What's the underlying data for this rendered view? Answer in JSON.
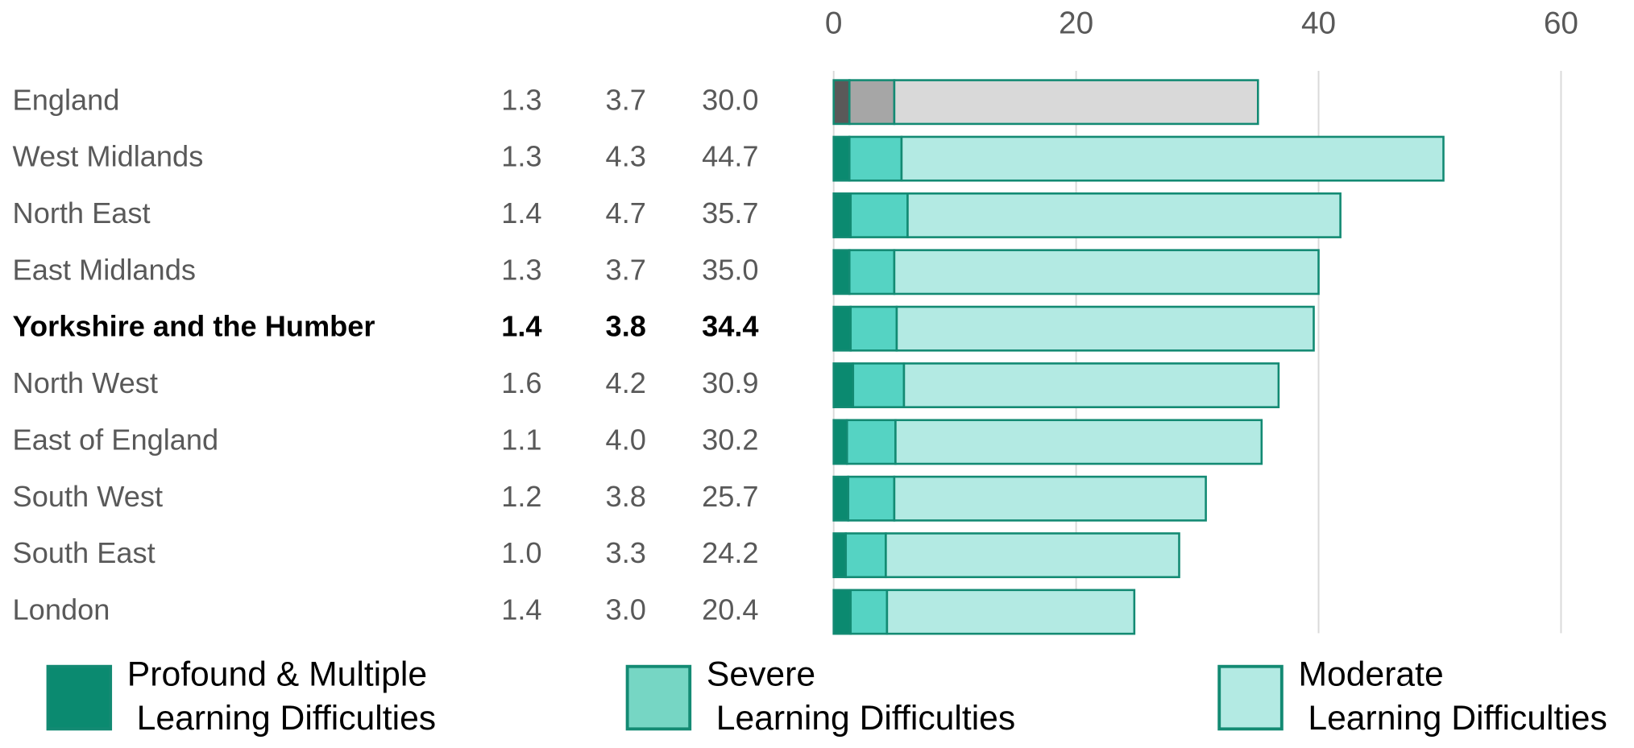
{
  "chart_data": {
    "type": "stacked_bar_horizontal",
    "categories": [
      "England",
      "West Midlands",
      "North East",
      "East Midlands",
      "Yorkshire and the Humber",
      "North West",
      "East of England",
      "South West",
      "South East",
      "London"
    ],
    "emphasis": [
      false,
      false,
      false,
      false,
      true,
      false,
      false,
      false,
      false,
      false
    ],
    "series": [
      {
        "name": "Profound & Multiple Learning Difficulties",
        "color": "#0b8a70",
        "colors": [
          "#595959",
          "#0b8a70",
          "#0b8a70",
          "#0b8a70",
          "#0b8a70",
          "#0b8a70",
          "#0b8a70",
          "#0b8a70",
          "#0b8a70",
          "#0b8a70"
        ],
        "values": [
          1.3,
          1.3,
          1.4,
          1.3,
          1.4,
          1.6,
          1.1,
          1.2,
          1.0,
          1.4
        ],
        "value_labels": [
          "1.3",
          "1.3",
          "1.4",
          "1.3",
          "1.4",
          "1.6",
          "1.1",
          "1.2",
          "1.0",
          "1.4"
        ]
      },
      {
        "name": "Severe Learning Difficulties",
        "color": "#76d6c4",
        "colors": [
          "#a6a6a6",
          "#55d3c3",
          "#55d3c3",
          "#55d3c3",
          "#55d3c3",
          "#55d3c3",
          "#55d3c3",
          "#55d3c3",
          "#55d3c3",
          "#55d3c3"
        ],
        "values": [
          3.7,
          4.3,
          4.7,
          3.7,
          3.8,
          4.2,
          4.0,
          3.8,
          3.3,
          3.0
        ],
        "value_labels": [
          "3.7",
          "4.3",
          "4.7",
          "3.7",
          "3.8",
          "4.2",
          "4.0",
          "3.8",
          "3.3",
          "3.0"
        ]
      },
      {
        "name": "Moderate Learning Difficulties",
        "color": "#b3eae3",
        "colors": [
          "#d9d9d9",
          "#b3eae3",
          "#b3eae3",
          "#b3eae3",
          "#b3eae3",
          "#b3eae3",
          "#b3eae3",
          "#b3eae3",
          "#b3eae3",
          "#b3eae3"
        ],
        "values": [
          30.0,
          44.7,
          35.7,
          35.0,
          34.4,
          30.9,
          30.2,
          25.7,
          24.2,
          20.4
        ],
        "value_labels": [
          "30.0",
          "44.7",
          "35.7",
          "35.0",
          "34.4",
          "30.9",
          "30.2",
          "25.7",
          "24.2",
          "20.4"
        ]
      }
    ],
    "xlim": [
      0,
      60
    ],
    "xticks": [
      0,
      20,
      40,
      60
    ],
    "grid": true,
    "legend": "bottom"
  }
}
